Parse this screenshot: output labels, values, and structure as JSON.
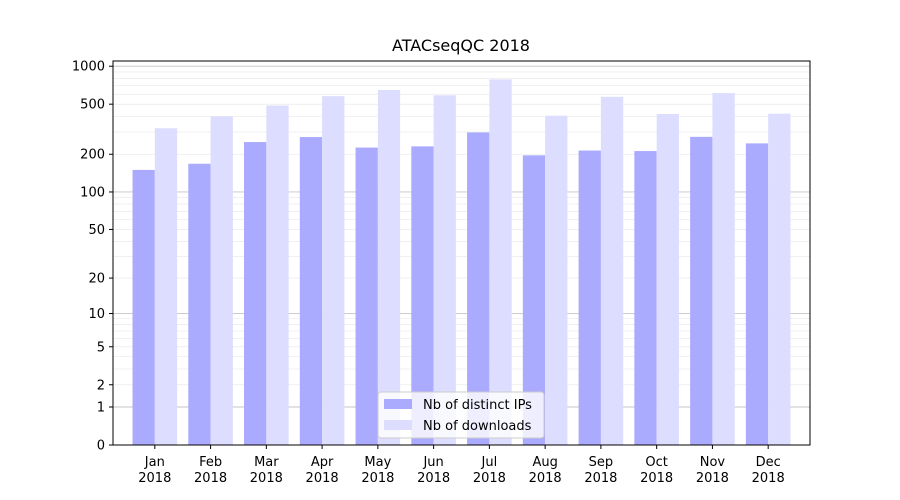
{
  "chart_data": {
    "type": "bar",
    "title": "ATACseqQC 2018",
    "xlabel": "",
    "ylabel": "",
    "y_scale": "log1p",
    "ylim": [
      0,
      1100
    ],
    "yticks": [
      0,
      1,
      2,
      5,
      10,
      20,
      50,
      100,
      200,
      500,
      1000
    ],
    "grid": true,
    "legend_position": "bottom-center",
    "categories": [
      [
        "Jan",
        "2018"
      ],
      [
        "Feb",
        "2018"
      ],
      [
        "Mar",
        "2018"
      ],
      [
        "Apr",
        "2018"
      ],
      [
        "May",
        "2018"
      ],
      [
        "Jun",
        "2018"
      ],
      [
        "Jul",
        "2018"
      ],
      [
        "Aug",
        "2018"
      ],
      [
        "Sep",
        "2018"
      ],
      [
        "Oct",
        "2018"
      ],
      [
        "Nov",
        "2018"
      ],
      [
        "Dec",
        "2018"
      ]
    ],
    "series": [
      {
        "name": "Nb of distinct IPs",
        "color": "#aaaaff",
        "values": [
          150,
          168,
          250,
          274,
          226,
          231,
          298,
          196,
          214,
          212,
          275,
          244
        ]
      },
      {
        "name": "Nb of downloads",
        "color": "#ddddff",
        "values": [
          322,
          400,
          488,
          579,
          648,
          588,
          786,
          405,
          572,
          418,
          612,
          420
        ]
      }
    ]
  }
}
